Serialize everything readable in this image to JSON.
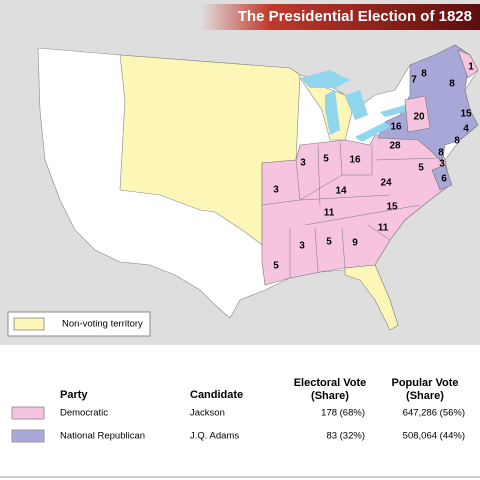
{
  "header": {
    "title": "The Presidential Election of 1828"
  },
  "map": {
    "territory": {
      "label": "Non-voting territory",
      "color": "#fcf7b6"
    },
    "water_color": "#8fd6ee",
    "state_labels": [
      {
        "text": "1",
        "party": 0
      },
      {
        "text": "8",
        "party": 1
      },
      {
        "text": "8",
        "party": 1
      },
      {
        "text": "7",
        "party": 1
      },
      {
        "text": "15",
        "party": 1
      },
      {
        "text": "4",
        "party": 1
      },
      {
        "text": "8",
        "party": 1
      },
      {
        "text": "16",
        "party": 1
      },
      {
        "text": "20",
        "party": 0
      },
      {
        "text": "28",
        "party": 0
      },
      {
        "text": "8",
        "party": 1
      },
      {
        "text": "3",
        "party": 1
      },
      {
        "text": "5",
        "party": 0
      },
      {
        "text": "6",
        "party": 1
      },
      {
        "text": "24",
        "party": 0
      },
      {
        "text": "15",
        "party": 0
      },
      {
        "text": "11",
        "party": 0
      },
      {
        "text": "9",
        "party": 0
      },
      {
        "text": "14",
        "party": 0
      },
      {
        "text": "11",
        "party": 0
      },
      {
        "text": "16",
        "party": 0
      },
      {
        "text": "5",
        "party": 0
      },
      {
        "text": "3",
        "party": 0
      },
      {
        "text": "3",
        "party": 0
      },
      {
        "text": "5",
        "party": 0
      },
      {
        "text": "3",
        "party": 0
      },
      {
        "text": "5",
        "party": 0
      }
    ]
  },
  "table": {
    "header": [
      "Party",
      "Candidate",
      [
        "Electoral Vote",
        "(Share)"
      ],
      [
        "Popular Vote",
        "(Share)"
      ]
    ],
    "rows": [
      {
        "color": "#f6c4de",
        "cells": [
          "Democratic",
          "Jackson",
          "178 (68%)",
          "647,286 (56%)"
        ]
      },
      {
        "color": "#a8a8d8",
        "cells": [
          "National Republican",
          "J.Q. Adams",
          "83 (32%)",
          "508,064 (44%)"
        ]
      }
    ]
  }
}
